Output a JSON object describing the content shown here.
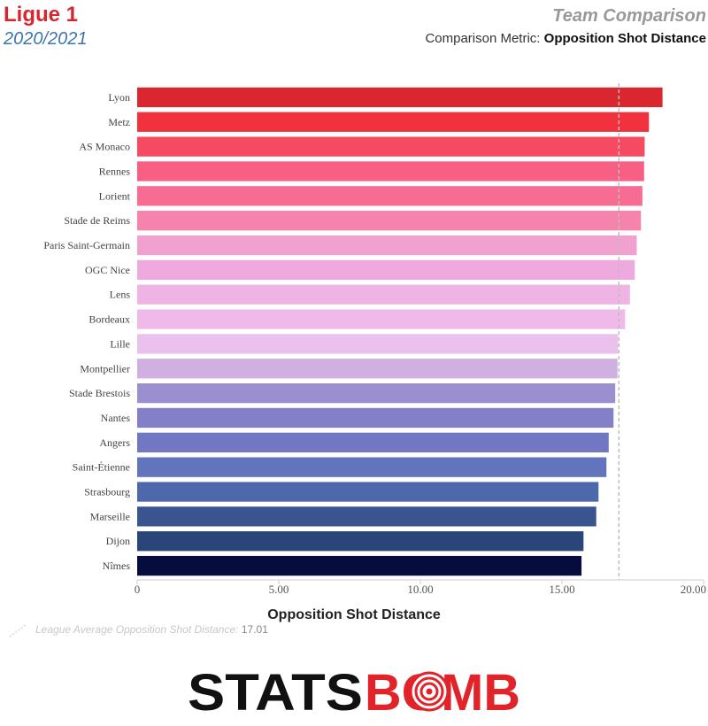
{
  "header": {
    "league": "Ligue 1",
    "season": "2020/2021",
    "title": "Team Comparison",
    "metric_label": "Comparison Metric:",
    "metric_value": "Opposition Shot Distance"
  },
  "chart_data": {
    "type": "bar",
    "orientation": "horizontal",
    "categories": [
      "Lyon",
      "Metz",
      "AS Monaco",
      "Rennes",
      "Lorient",
      "Stade de Reims",
      "Paris Saint-Germain",
      "OGC Nice",
      "Lens",
      "Bordeaux",
      "Lille",
      "Montpellier",
      "Stade Brestois",
      "Nantes",
      "Angers",
      "Saint-Étienne",
      "Strasbourg",
      "Marseille",
      "Dijon",
      "Nîmes"
    ],
    "values": [
      18.55,
      18.07,
      17.92,
      17.9,
      17.84,
      17.79,
      17.64,
      17.57,
      17.4,
      17.23,
      16.98,
      16.96,
      16.88,
      16.82,
      16.65,
      16.57,
      16.29,
      16.21,
      15.76,
      15.69
    ],
    "colors": [
      "#d9262f",
      "#f2313f",
      "#f64a62",
      "#f75f85",
      "#f76c93",
      "#f683ab",
      "#f1a1cf",
      "#eeaade",
      "#efb4e4",
      "#efbaea",
      "#e9c1ec",
      "#d0afe1",
      "#9c8fd0",
      "#8480c7",
      "#7177c2",
      "#6174bd",
      "#4d68ab",
      "#3a5490",
      "#2a4577",
      "#070c3e"
    ],
    "xlabel": "Opposition Shot Distance",
    "xlim": [
      0,
      20
    ],
    "xticks": [
      "0",
      "5.00",
      "10.00",
      "15.00",
      "20.00"
    ],
    "xtick_values": [
      0,
      5,
      10,
      15,
      20
    ],
    "reference_line": {
      "label": "League Average Opposition Shot Distance:",
      "value": 17.01,
      "value_text": "17.01"
    }
  }
}
